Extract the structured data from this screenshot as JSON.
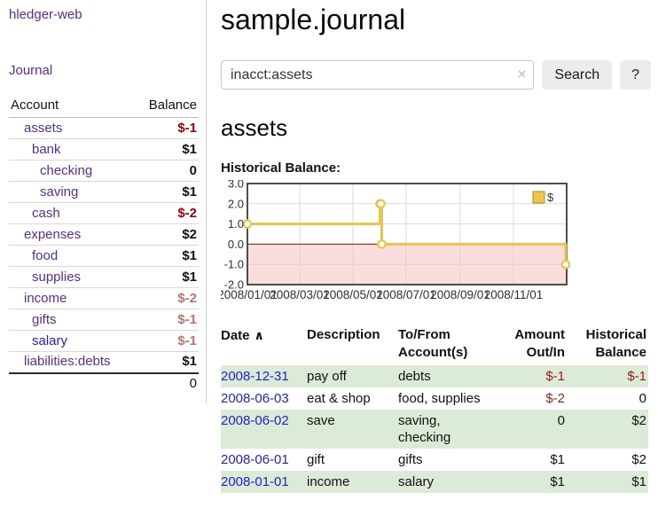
{
  "colors": {
    "accent_purple": "#5a2d8f",
    "link_blue": "#2222cc",
    "negative_strong": "#a40000",
    "negative_muted": "#c0716c",
    "row_stripe_green": "#dcebd8",
    "chart_line_gold": "#e9c44a",
    "chart_legend_fill": "#ecc64d",
    "chart_legend_border": "#a68c2e",
    "chart_zero_line": "#9c0606",
    "chart_negative_fill": "rgba(246,195,195,0.55)",
    "chart_border": "#4d4d4d",
    "chart_grid": "#d9d9d9"
  },
  "sidebar": {
    "app_title": "hledger-web",
    "nav": {
      "journal_label": "Journal"
    },
    "accounts_table": {
      "headers": {
        "account": "Account",
        "balance": "Balance"
      },
      "rows": [
        {
          "name": "assets",
          "depth": 1,
          "bold": true,
          "balance": "$-1",
          "balance_style": "neg-strong"
        },
        {
          "name": "bank",
          "depth": 2,
          "bold": true,
          "balance": "$1",
          "balance_style": "pos"
        },
        {
          "name": "checking",
          "depth": 3,
          "bold": true,
          "balance": "0",
          "balance_style": "pos"
        },
        {
          "name": "saving",
          "depth": 3,
          "bold": true,
          "balance": "$1",
          "balance_style": "pos"
        },
        {
          "name": "cash",
          "depth": 2,
          "bold": true,
          "balance": "$-2",
          "balance_style": "neg-strong"
        },
        {
          "name": "expenses",
          "depth": 1,
          "bold": false,
          "balance": "$2",
          "balance_style": "pos"
        },
        {
          "name": "food",
          "depth": 2,
          "bold": false,
          "balance": "$1",
          "balance_style": "pos"
        },
        {
          "name": "supplies",
          "depth": 2,
          "bold": false,
          "balance": "$1",
          "balance_style": "pos"
        },
        {
          "name": "income",
          "depth": 1,
          "bold": false,
          "balance": "$-2",
          "balance_style": "neg-muted"
        },
        {
          "name": "gifts",
          "depth": 2,
          "bold": false,
          "balance": "$-1",
          "balance_style": "neg-muted"
        },
        {
          "name": "salary",
          "depth": 2,
          "bold": false,
          "link_blue": true,
          "balance": "$-1",
          "balance_style": "neg-muted"
        },
        {
          "name": "liabilities:debts",
          "depth": 1,
          "bold": false,
          "balance": "$1",
          "balance_style": "pos"
        }
      ],
      "total": "0"
    }
  },
  "header": {
    "title": "sample.journal"
  },
  "search": {
    "query": "inacct:assets",
    "clear_icon": "×",
    "search_label": "Search",
    "help_label": "?"
  },
  "account_page": {
    "heading": "assets",
    "chart_title": "Historical Balance:"
  },
  "chart_data": {
    "type": "line",
    "title": "Historical Balance:",
    "series": [
      {
        "name": "$",
        "style": "step-after",
        "points": [
          [
            "2008-01-01",
            1
          ],
          [
            "2008-06-01",
            2
          ],
          [
            "2008-06-02",
            2
          ],
          [
            "2008-06-03",
            0
          ],
          [
            "2008-12-31",
            -1
          ]
        ]
      }
    ],
    "x_ticks": [
      "2008/01/01",
      "2008/03/01",
      "2008/05/01",
      "2008/07/01",
      "2008/09/01",
      "2008/11/01"
    ],
    "y_ticks": [
      3.0,
      2.0,
      1.0,
      0.0,
      -1.0,
      -2.0
    ],
    "xlim": [
      "2008-01-01",
      "2009-01-01"
    ],
    "ylim": [
      -2,
      3
    ],
    "grid": true,
    "legend": {
      "label": "$",
      "position": "top-right"
    },
    "negative_region_shaded": true
  },
  "register_table": {
    "headers": {
      "date": "Date",
      "sort_icon": "∧",
      "description": "Description",
      "accounts": "To/From Account(s)",
      "amount": "Amount Out/In",
      "balance": "Historical Balance"
    },
    "rows": [
      {
        "date": "2008-12-31",
        "description": "pay off",
        "accounts": "debts",
        "amount": "$-1",
        "amount_negative": true,
        "balance": "$-1",
        "balance_negative": true
      },
      {
        "date": "2008-06-03",
        "description": "eat & shop",
        "accounts": "food, supplies",
        "amount": "$-2",
        "amount_negative": true,
        "balance": "0",
        "balance_negative": false
      },
      {
        "date": "2008-06-02",
        "description": "save",
        "accounts": "saving, checking",
        "amount": "0",
        "amount_negative": false,
        "balance": "$2",
        "balance_negative": false
      },
      {
        "date": "2008-06-01",
        "description": "gift",
        "accounts": "gifts",
        "amount": "$1",
        "amount_negative": false,
        "balance": "$2",
        "balance_negative": false
      },
      {
        "date": "2008-01-01",
        "description": "income",
        "accounts": "salary",
        "amount": "$1",
        "amount_negative": false,
        "balance": "$1",
        "balance_negative": false
      }
    ]
  }
}
